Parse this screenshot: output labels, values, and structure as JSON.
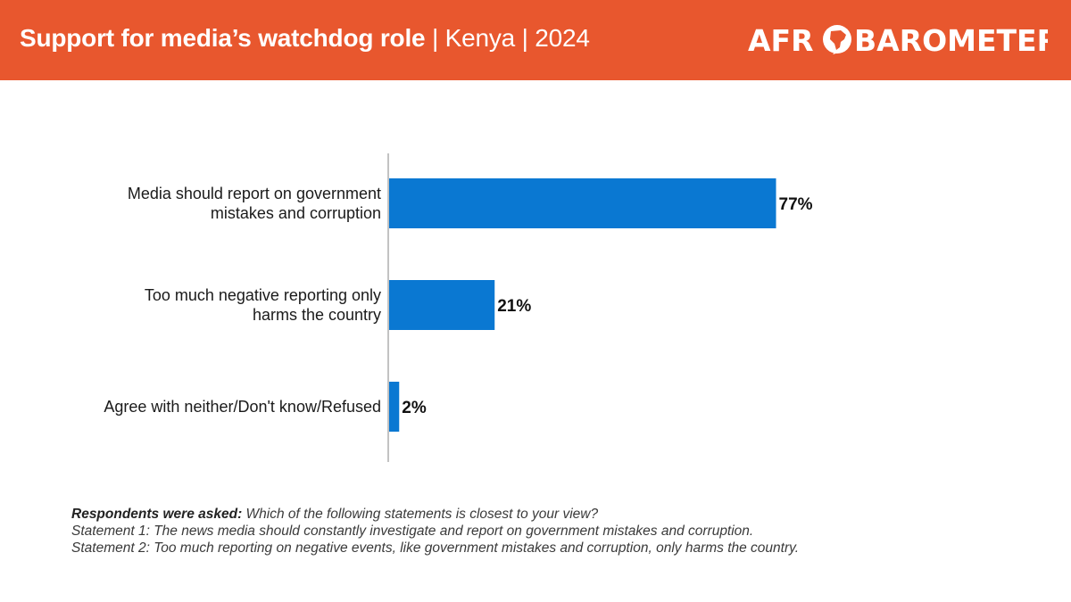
{
  "header": {
    "title_main": "Support for media’s watchdog role",
    "title_rest": " | Kenya | 2024",
    "logo_text_left": "AFR",
    "logo_text_right": "BAROMETER",
    "background_color": "#e8572e"
  },
  "chart_data": {
    "type": "bar",
    "orientation": "horizontal",
    "categories": [
      [
        "Media should report on government",
        "mistakes and corruption"
      ],
      [
        "Too much negative reporting only",
        "harms the country"
      ],
      [
        "Agree with neither/Don't know/Refused"
      ]
    ],
    "values": [
      77,
      21,
      2
    ],
    "value_labels": [
      "77%",
      "21%",
      "2%"
    ],
    "xlim": [
      0,
      100
    ],
    "bar_color": "#0a78d2",
    "grid": false,
    "legend": "none"
  },
  "note": {
    "lead": "Respondents were asked:",
    "question": " Which of the following statements is closest to your view?",
    "statement1": "Statement 1: The news media should constantly investigate and report on government mistakes and corruption.",
    "statement2": "Statement 2: Too much reporting on negative events, like government mistakes and corruption, only harms the country."
  }
}
